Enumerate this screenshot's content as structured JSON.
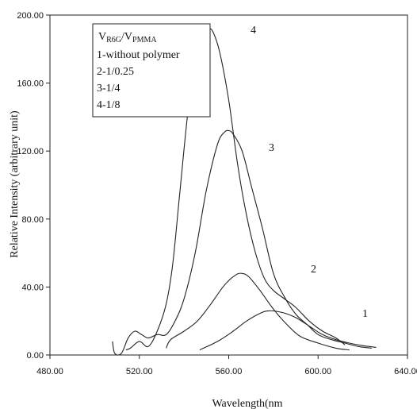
{
  "chart_data": {
    "type": "line",
    "xlabel": "Wavelength(nm",
    "ylabel": "Relative Intensity (arbitrary unit)",
    "xlim": [
      480,
      640
    ],
    "ylim": [
      0,
      200
    ],
    "x_ticks": [
      "480.00",
      "520.00",
      "560.00",
      "600.00",
      "640.00"
    ],
    "y_ticks": [
      "0.00",
      "40.00",
      "80.00",
      "120.00",
      "160.00",
      "200.00"
    ],
    "grid": false,
    "legend": {
      "placement": "top-left",
      "title_main": "V",
      "title_sub1": "R6G",
      "title_sep": "/V",
      "title_sub2": "PMMA",
      "entries": [
        "1-without polymer",
        "2-1/0.25",
        "3-1/4",
        "4-1/8"
      ]
    },
    "series": [
      {
        "name": "1",
        "label": "1",
        "x": [
          547,
          555,
          562,
          568,
          574,
          578,
          584,
          590,
          596,
          602,
          608,
          614,
          620,
          626
        ],
        "y": [
          3,
          8,
          14,
          20,
          24.5,
          26,
          25,
          22,
          17,
          12,
          9,
          7,
          5.5,
          4.5
        ]
      },
      {
        "name": "2",
        "label": "2",
        "x": [
          532,
          534,
          540,
          546,
          552,
          558,
          563,
          566,
          569,
          574,
          580,
          586,
          592,
          600,
          608,
          614
        ],
        "y": [
          4,
          9,
          14,
          20,
          30,
          41,
          47,
          48,
          46,
          38,
          27,
          18,
          11,
          7,
          4,
          3
        ]
      },
      {
        "name": "3",
        "label": "3",
        "x": [
          508,
          509,
          512,
          515,
          518,
          521,
          524,
          528,
          532,
          536,
          540,
          545,
          550,
          555,
          558,
          560,
          562,
          566,
          570,
          575,
          580,
          585,
          590,
          595,
          600,
          606,
          612,
          618,
          624
        ],
        "y": [
          8,
          1,
          1,
          10,
          14,
          12,
          10,
          12,
          12,
          20,
          33,
          60,
          97,
          124,
          131,
          132,
          130,
          120,
          100,
          75,
          48,
          34,
          24,
          18,
          12,
          9,
          7,
          5,
          4
        ]
      },
      {
        "name": "4",
        "label": "4",
        "x": [
          514,
          516,
          520,
          524,
          528,
          532,
          535,
          538,
          542,
          546,
          549,
          551,
          553,
          556,
          560,
          564,
          568,
          572,
          576,
          580,
          585,
          590,
          596,
          602,
          608,
          612
        ],
        "y": [
          3,
          4,
          8,
          5,
          14,
          30,
          54,
          94,
          146,
          180,
          190,
          192,
          190,
          178,
          150,
          112,
          82,
          60,
          45,
          38,
          33,
          28,
          20,
          14,
          10,
          6
        ]
      }
    ]
  }
}
